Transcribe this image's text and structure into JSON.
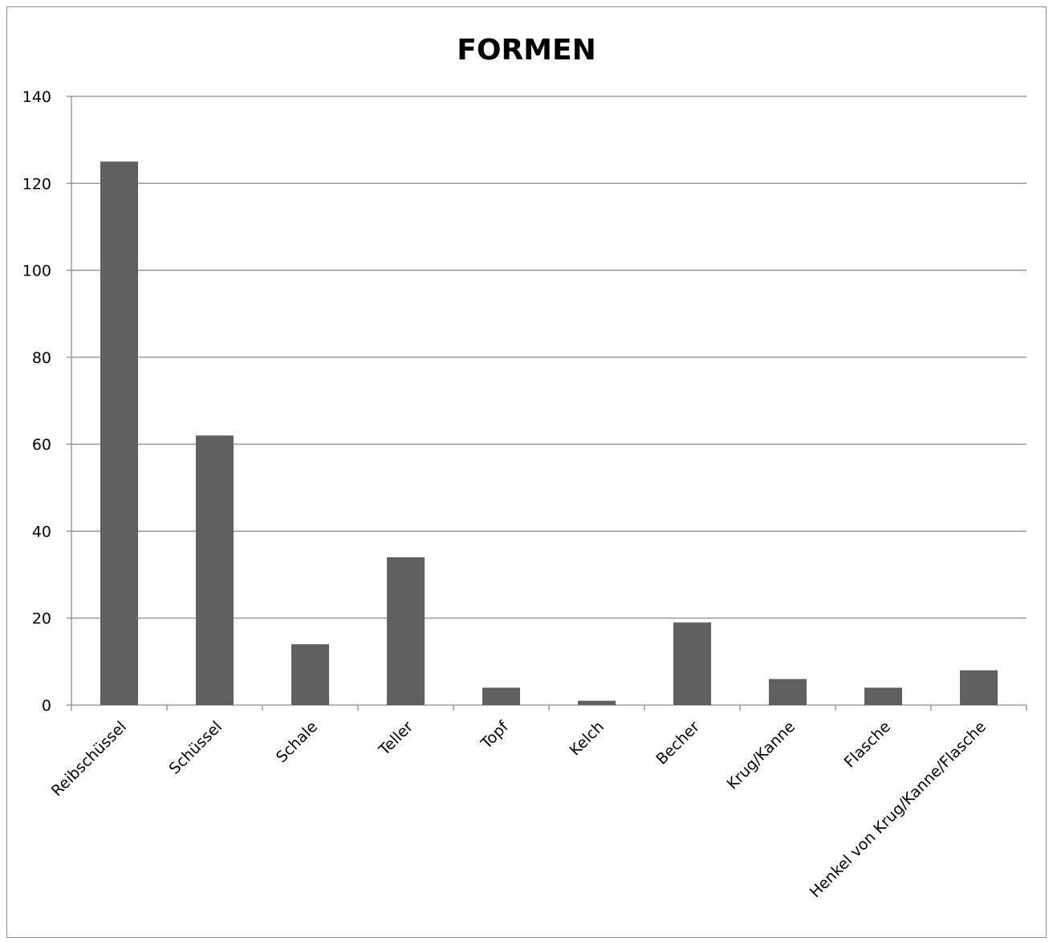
{
  "chart_data": {
    "type": "bar",
    "title": "FORMEN",
    "xlabel": "",
    "ylabel": "",
    "categories": [
      "Reibschüssel",
      "Schüssel",
      "Schale",
      "Teller",
      "Topf",
      "Kelch",
      "Becher",
      "Krug/Kanne",
      "Flasche",
      "Henkel von Krug/Kanne/Flasche"
    ],
    "values": [
      125,
      62,
      14,
      34,
      4,
      1,
      19,
      6,
      4,
      8
    ],
    "ylim": [
      0,
      140
    ],
    "yticks": [
      0,
      20,
      40,
      60,
      80,
      100,
      120,
      140
    ],
    "grid": true,
    "legend": "none",
    "bar_color": "#606060",
    "grid_color": "#8c8c8c"
  }
}
